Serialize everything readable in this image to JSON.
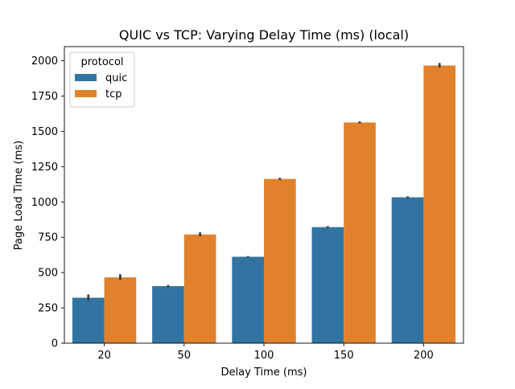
{
  "chart_data": {
    "type": "bar",
    "title": "QUIC vs TCP: Varying Delay Time (ms) (local)",
    "xlabel": "Delay Time (ms)",
    "ylabel": "Page Load Time (ms)",
    "categories": [
      "20",
      "50",
      "100",
      "150",
      "200"
    ],
    "ylim": [
      0,
      2100
    ],
    "yticks": [
      0,
      250,
      500,
      750,
      1000,
      1250,
      1500,
      1750,
      2000
    ],
    "grid": false,
    "legend": {
      "title": "protocol",
      "placement": "top-left"
    },
    "series": [
      {
        "name": "quic",
        "color": "#3274a1",
        "values": [
          322,
          404,
          612,
          822,
          1033
        ],
        "error": [
          [
            300,
            345
          ],
          [
            397,
            412
          ],
          [
            607,
            617
          ],
          [
            816,
            829
          ],
          [
            1027,
            1040
          ]
        ]
      },
      {
        "name": "tcp",
        "color": "#e1812c",
        "values": [
          466,
          770,
          1163,
          1563,
          1966
        ],
        "error": [
          [
            448,
            488
          ],
          [
            757,
            785
          ],
          [
            1155,
            1171
          ],
          [
            1555,
            1571
          ],
          [
            1952,
            1984
          ]
        ]
      }
    ]
  }
}
